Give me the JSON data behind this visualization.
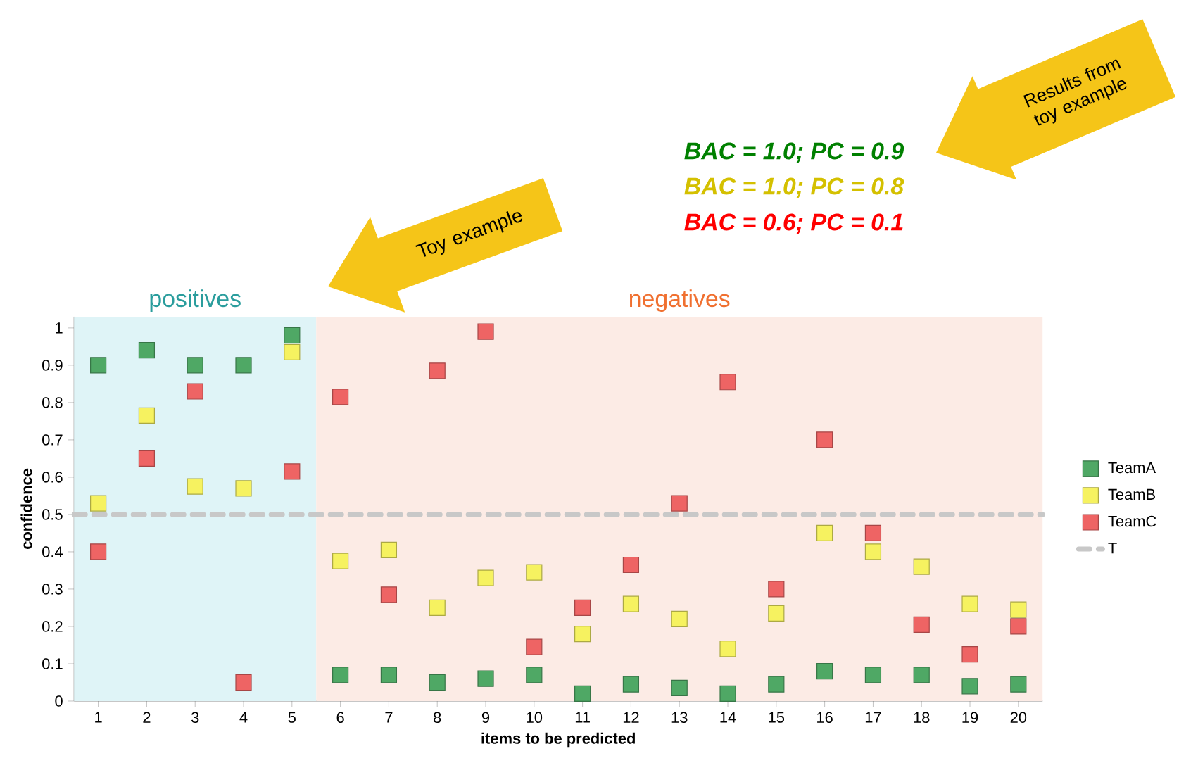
{
  "chart_data": {
    "type": "scatter",
    "xlabel": "items to be predicted",
    "ylabel": "confidence",
    "x": [
      1,
      2,
      3,
      4,
      5,
      6,
      7,
      8,
      9,
      10,
      11,
      12,
      13,
      14,
      15,
      16,
      17,
      18,
      19,
      20
    ],
    "xlim": [
      0.5,
      20.5
    ],
    "xticks": [
      1,
      2,
      3,
      4,
      5,
      6,
      7,
      8,
      9,
      10,
      11,
      12,
      13,
      14,
      15,
      16,
      17,
      18,
      19,
      20
    ],
    "ylim": [
      0,
      1.03
    ],
    "yticks": [
      0,
      0.1,
      0.2,
      0.3,
      0.4,
      0.5,
      0.6,
      0.7,
      0.8,
      0.9,
      1
    ],
    "marker": "square",
    "legend": "right",
    "grid": false,
    "series": [
      {
        "name": "TeamA",
        "color": "#4fa865",
        "values": [
          0.9,
          0.94,
          0.9,
          0.9,
          0.98,
          0.07,
          0.07,
          0.05,
          0.06,
          0.07,
          0.02,
          0.045,
          0.035,
          0.02,
          0.045,
          0.08,
          0.07,
          0.07,
          0.04,
          0.045
        ]
      },
      {
        "name": "TeamB",
        "color": "#f6f260",
        "values": [
          0.53,
          0.765,
          0.575,
          0.57,
          0.935,
          0.375,
          0.405,
          0.25,
          0.33,
          0.345,
          0.18,
          0.26,
          0.22,
          0.14,
          0.235,
          0.45,
          0.4,
          0.36,
          0.26,
          0.245
        ]
      },
      {
        "name": "TeamC",
        "color": "#ee6464",
        "values": [
          0.4,
          0.65,
          0.83,
          0.05,
          0.615,
          0.815,
          0.285,
          0.885,
          0.99,
          0.145,
          0.25,
          0.365,
          0.53,
          0.855,
          0.3,
          0.7,
          0.45,
          0.205,
          0.125,
          0.2
        ]
      }
    ],
    "ref_lines": [
      {
        "axis": "y",
        "value": 0.5,
        "label": "T",
        "color": "#c8c8c8",
        "line_style": "dashed"
      }
    ],
    "bands": [
      {
        "axis": "x",
        "from": 0.5,
        "to": 5.5,
        "label": "positives",
        "color": "#dff4f7"
      },
      {
        "axis": "x",
        "from": 5.5,
        "to": 20.5,
        "label": "negatives",
        "color": "#fcebe5"
      }
    ],
    "annotations": [
      "BAC = 1.0; PC = 0.9",
      "BAC = 1.0; PC = 0.8",
      "BAC = 0.6; PC = 0.1",
      "Toy example",
      "Results from toy example"
    ]
  }
}
